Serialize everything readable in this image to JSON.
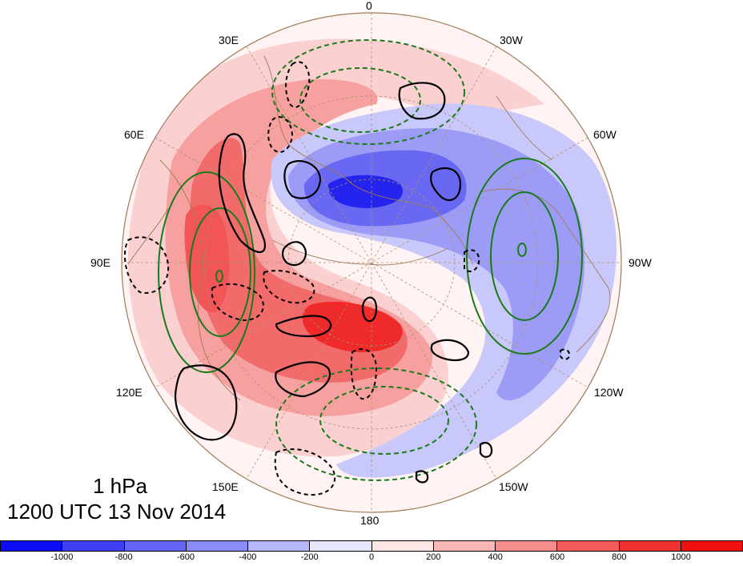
{
  "map": {
    "projection": "north polar stereographic",
    "level_label": "1 hPa",
    "time_label": "1200 UTC 13 Nov 2014",
    "longitude_labels": {
      "top": "0",
      "upper_left_1": "30E",
      "upper_right_1": "30W",
      "upper_left_2": "60E",
      "upper_right_2": "60W",
      "left": "90E",
      "right": "90W",
      "lower_left_2": "120E",
      "lower_right_2": "120W",
      "lower_left_1": "150E",
      "lower_right_1": "150W",
      "bottom": "180"
    },
    "colors": {
      "negative_strong": "#0a12f0",
      "positive_strong": "#f01010",
      "contour_positive": "#1a7a1a",
      "contour_black": "#000000",
      "coastline": "#a07a5a",
      "graticule": "#b09070"
    }
  },
  "colorbar": {
    "ticks": [
      "-1000",
      "-800",
      "-600",
      "-400",
      "-200",
      "0",
      "200",
      "400",
      "600",
      "800",
      "1000"
    ],
    "colors": [
      "#0b0bf4",
      "#3f3ff4",
      "#6464f6",
      "#8c8cf8",
      "#b6b6fa",
      "#e6e6fd",
      "#ffe6e6",
      "#fbb6b6",
      "#f78c8c",
      "#f35a5a",
      "#ef3030",
      "#f01010"
    ]
  }
}
